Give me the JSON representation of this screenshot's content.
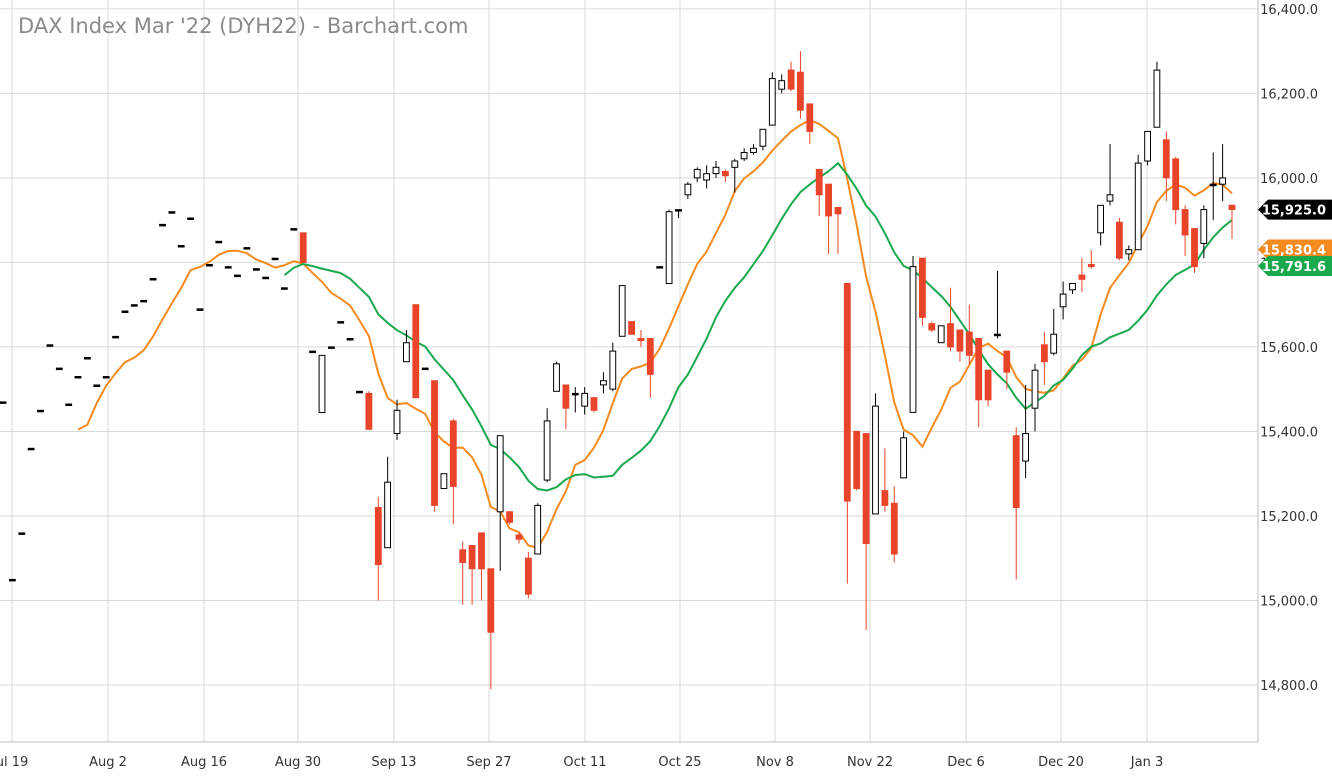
{
  "chart_data": {
    "type": "candlestick",
    "title": "DAX Index Mar '22 (DYH22) - Barchart.com",
    "ylim": [
      14700,
      16400
    ],
    "grid": true,
    "x_tick_labels": [
      "ul 19",
      "Aug 2",
      "Aug 16",
      "Aug 30",
      "Sep 13",
      "Sep 27",
      "Oct 11",
      "Oct 25",
      "Nov 8",
      "Nov 22",
      "Dec 6",
      "Dec 20",
      "Jan 3"
    ],
    "y_ticks": [
      14800,
      15000,
      15200,
      15400,
      15600,
      15800,
      16000,
      16200,
      16400
    ],
    "y_tick_labels": [
      "14,800.0",
      "15,000.0",
      "15,200.0",
      "15,400.0",
      "15,600.0",
      "15,800.0",
      "16,000.0",
      "16,200.0",
      "16,400.0"
    ],
    "last_price": {
      "label": "15,925.0",
      "value": 15925.0,
      "color": "#000000"
    },
    "moving_averages": [
      {
        "value_label": "15,830.4",
        "value": 15830.4,
        "color": "#f58a1f"
      },
      {
        "value_label": "15,791.6",
        "value": 15791.6,
        "color": "#1aa84d"
      }
    ],
    "candles": [
      {
        "date": "Jul 16",
        "o": 15470,
        "h": 15470,
        "l": 15470,
        "c": 15470
      },
      {
        "date": "Jul 19",
        "o": 15050,
        "h": 15050,
        "l": 15050,
        "c": 15050
      },
      {
        "date": "Jul 20",
        "o": 15160,
        "h": 15160,
        "l": 15160,
        "c": 15160
      },
      {
        "date": "Jul 21",
        "o": 15360,
        "h": 15360,
        "l": 15360,
        "c": 15360
      },
      {
        "date": "Jul 22",
        "o": 15450,
        "h": 15450,
        "l": 15450,
        "c": 15450
      },
      {
        "date": "Jul 23",
        "o": 15605,
        "h": 15605,
        "l": 15605,
        "c": 15605
      },
      {
        "date": "Jul 26",
        "o": 15550,
        "h": 15550,
        "l": 15550,
        "c": 15550
      },
      {
        "date": "Jul 27",
        "o": 15465,
        "h": 15465,
        "l": 15465,
        "c": 15465
      },
      {
        "date": "Jul 28",
        "o": 15530,
        "h": 15530,
        "l": 15530,
        "c": 15530
      },
      {
        "date": "Jul 29",
        "o": 15575,
        "h": 15575,
        "l": 15575,
        "c": 15575
      },
      {
        "date": "Jul 30",
        "o": 15510,
        "h": 15510,
        "l": 15510,
        "c": 15510
      },
      {
        "date": "Aug 2",
        "o": 15530,
        "h": 15530,
        "l": 15530,
        "c": 15530
      },
      {
        "date": "Aug 3",
        "o": 15625,
        "h": 15625,
        "l": 15625,
        "c": 15625
      },
      {
        "date": "Aug 4",
        "o": 15685,
        "h": 15685,
        "l": 15685,
        "c": 15685
      },
      {
        "date": "Aug 5",
        "o": 15700,
        "h": 15700,
        "l": 15700,
        "c": 15700
      },
      {
        "date": "Aug 6",
        "o": 15710,
        "h": 15710,
        "l": 15710,
        "c": 15710
      },
      {
        "date": "Aug 9",
        "o": 15762,
        "h": 15762,
        "l": 15762,
        "c": 15762
      },
      {
        "date": "Aug 10",
        "o": 15890,
        "h": 15890,
        "l": 15890,
        "c": 15890
      },
      {
        "date": "Aug 11",
        "o": 15920,
        "h": 15920,
        "l": 15920,
        "c": 15920
      },
      {
        "date": "Aug 12",
        "o": 15840,
        "h": 15840,
        "l": 15840,
        "c": 15840
      },
      {
        "date": "Aug 13",
        "o": 15905,
        "h": 15905,
        "l": 15905,
        "c": 15905
      },
      {
        "date": "Aug 16",
        "o": 15690,
        "h": 15690,
        "l": 15690,
        "c": 15690
      },
      {
        "date": "Aug 17",
        "o": 15795,
        "h": 15795,
        "l": 15795,
        "c": 15795
      },
      {
        "date": "Aug 18",
        "o": 15850,
        "h": 15850,
        "l": 15850,
        "c": 15850
      },
      {
        "date": "Aug 19",
        "o": 15790,
        "h": 15790,
        "l": 15790,
        "c": 15790
      },
      {
        "date": "Aug 20",
        "o": 15770,
        "h": 15770,
        "l": 15770,
        "c": 15770
      },
      {
        "date": "Aug 23",
        "o": 15835,
        "h": 15835,
        "l": 15835,
        "c": 15835
      },
      {
        "date": "Aug 24",
        "o": 15785,
        "h": 15785,
        "l": 15785,
        "c": 15785
      },
      {
        "date": "Aug 25",
        "o": 15765,
        "h": 15765,
        "l": 15765,
        "c": 15765
      },
      {
        "date": "Aug 26",
        "o": 15810,
        "h": 15810,
        "l": 15810,
        "c": 15810
      },
      {
        "date": "Aug 27",
        "o": 15740,
        "h": 15740,
        "l": 15740,
        "c": 15740
      },
      {
        "date": "Aug 30",
        "o": 15880,
        "h": 15880,
        "l": 15880,
        "c": 15880
      },
      {
        "date": "Aug 31",
        "o": 15870,
        "h": 15870,
        "l": 15800,
        "c": 15800
      },
      {
        "date": "Sep 1",
        "o": 15590,
        "h": 15590,
        "l": 15590,
        "c": 15590
      },
      {
        "date": "Sep 2",
        "o": 15445,
        "h": 15580,
        "l": 15445,
        "c": 15580
      },
      {
        "date": "Sep 3",
        "o": 15600,
        "h": 15600,
        "l": 15600,
        "c": 15600
      },
      {
        "date": "Sep 6",
        "o": 15660,
        "h": 15660,
        "l": 15660,
        "c": 15660
      },
      {
        "date": "Sep 7",
        "o": 15620,
        "h": 15620,
        "l": 15620,
        "c": 15620
      },
      {
        "date": "Sep 8",
        "o": 15495,
        "h": 15495,
        "l": 15495,
        "c": 15495
      },
      {
        "date": "Sep 9",
        "o": 15490,
        "h": 15495,
        "l": 15420,
        "c": 15405
      },
      {
        "date": "Sep 10",
        "o": 15220,
        "h": 15245,
        "l": 15000,
        "c": 15085
      },
      {
        "date": "Sep 13",
        "o": 15125,
        "h": 15340,
        "l": 15125,
        "c": 15280
      },
      {
        "date": "Sep 14",
        "o": 15395,
        "h": 15475,
        "l": 15380,
        "c": 15450
      },
      {
        "date": "Sep 15",
        "o": 15565,
        "h": 15640,
        "l": 15565,
        "c": 15610
      },
      {
        "date": "Sep 16",
        "o": 15700,
        "h": 15700,
        "l": 15480,
        "c": 15480
      },
      {
        "date": "Sep 17",
        "o": 15550,
        "h": 15550,
        "l": 15550,
        "c": 15550
      },
      {
        "date": "Sep 20",
        "o": 15520,
        "h": 15520,
        "l": 15210,
        "c": 15225
      },
      {
        "date": "Sep 21",
        "o": 15265,
        "h": 15300,
        "l": 15265,
        "c": 15300
      },
      {
        "date": "Sep 22",
        "o": 15425,
        "h": 15430,
        "l": 15180,
        "c": 15270
      },
      {
        "date": "Sep 23",
        "o": 15120,
        "h": 15140,
        "l": 14990,
        "c": 15090
      },
      {
        "date": "Sep 24",
        "o": 15130,
        "h": 15130,
        "l": 14990,
        "c": 15075
      },
      {
        "date": "Sep 27",
        "o": 15160,
        "h": 15160,
        "l": 15000,
        "c": 15075
      },
      {
        "date": "Sep 28",
        "o": 15075,
        "h": 15075,
        "l": 14790,
        "c": 14925
      },
      {
        "date": "Sep 29",
        "o": 15210,
        "h": 15390,
        "l": 15070,
        "c": 15390
      },
      {
        "date": "Sep 30",
        "o": 15210,
        "h": 15210,
        "l": 15180,
        "c": 15185
      },
      {
        "date": "Oct 1",
        "o": 15155,
        "h": 15160,
        "l": 15135,
        "c": 15145
      },
      {
        "date": "Oct 4",
        "o": 15100,
        "h": 15115,
        "l": 15005,
        "c": 15015
      },
      {
        "date": "Oct 5",
        "o": 15110,
        "h": 15230,
        "l": 15110,
        "c": 15225
      },
      {
        "date": "Oct 6",
        "o": 15285,
        "h": 15455,
        "l": 15280,
        "c": 15425
      },
      {
        "date": "Oct 7",
        "o": 15495,
        "h": 15565,
        "l": 15495,
        "c": 15560
      },
      {
        "date": "Oct 8",
        "o": 15510,
        "h": 15510,
        "l": 15405,
        "c": 15455
      },
      {
        "date": "Oct 11",
        "o": 15490,
        "h": 15505,
        "l": 15445,
        "c": 15490
      },
      {
        "date": "Oct 12",
        "o": 15460,
        "h": 15505,
        "l": 15440,
        "c": 15490
      },
      {
        "date": "Oct 13",
        "o": 15480,
        "h": 15480,
        "l": 15445,
        "c": 15450
      },
      {
        "date": "Oct 14",
        "o": 15510,
        "h": 15540,
        "l": 15490,
        "c": 15520
      },
      {
        "date": "Oct 15",
        "o": 15500,
        "h": 15610,
        "l": 15495,
        "c": 15590
      },
      {
        "date": "Oct 18",
        "o": 15625,
        "h": 15745,
        "l": 15625,
        "c": 15745
      },
      {
        "date": "Oct 19",
        "o": 15660,
        "h": 15660,
        "l": 15630,
        "c": 15630
      },
      {
        "date": "Oct 20",
        "o": 15620,
        "h": 15640,
        "l": 15600,
        "c": 15615
      },
      {
        "date": "Oct 21",
        "o": 15620,
        "h": 15620,
        "l": 15480,
        "c": 15535
      },
      {
        "date": "Oct 22",
        "o": 15790,
        "h": 15790,
        "l": 15790,
        "c": 15790
      },
      {
        "date": "Oct 25",
        "o": 15750,
        "h": 15925,
        "l": 15750,
        "c": 15920
      },
      {
        "date": "Oct 26",
        "o": 15925,
        "h": 15925,
        "l": 15905,
        "c": 15925
      },
      {
        "date": "Oct 27",
        "o": 15960,
        "h": 15990,
        "l": 15950,
        "c": 15985
      },
      {
        "date": "Oct 28",
        "o": 16000,
        "h": 16025,
        "l": 15990,
        "c": 16020
      },
      {
        "date": "Oct 29",
        "o": 15995,
        "h": 16030,
        "l": 15975,
        "c": 16010
      },
      {
        "date": "Nov 1",
        "o": 16010,
        "h": 16040,
        "l": 16000,
        "c": 16025
      },
      {
        "date": "Nov 2",
        "o": 16015,
        "h": 16020,
        "l": 15990,
        "c": 16005
      },
      {
        "date": "Nov 3",
        "o": 16025,
        "h": 16045,
        "l": 15965,
        "c": 16040
      },
      {
        "date": "Nov 4",
        "o": 16045,
        "h": 16070,
        "l": 16040,
        "c": 16060
      },
      {
        "date": "Nov 5",
        "o": 16060,
        "h": 16080,
        "l": 16055,
        "c": 16070
      },
      {
        "date": "Nov 8",
        "o": 16075,
        "h": 16110,
        "l": 16065,
        "c": 16115
      },
      {
        "date": "Nov 9",
        "o": 16125,
        "h": 16250,
        "l": 16125,
        "c": 16235
      },
      {
        "date": "Nov 10",
        "o": 16210,
        "h": 16245,
        "l": 16200,
        "c": 16230
      },
      {
        "date": "Nov 11",
        "o": 16255,
        "h": 16275,
        "l": 16205,
        "c": 16210
      },
      {
        "date": "Nov 12",
        "o": 16250,
        "h": 16300,
        "l": 16140,
        "c": 16160
      },
      {
        "date": "Nov 15",
        "o": 16175,
        "h": 16175,
        "l": 16080,
        "c": 16110
      },
      {
        "date": "Nov 16",
        "o": 16020,
        "h": 16020,
        "l": 15910,
        "c": 15960
      },
      {
        "date": "Nov 17",
        "o": 15985,
        "h": 15985,
        "l": 15820,
        "c": 15910
      },
      {
        "date": "Nov 18",
        "o": 15930,
        "h": 15930,
        "l": 15820,
        "c": 15915
      },
      {
        "date": "Nov 19",
        "o": 15750,
        "h": 15750,
        "l": 15040,
        "c": 15235
      },
      {
        "date": "Nov 22",
        "o": 15400,
        "h": 15400,
        "l": 15260,
        "c": 15265
      },
      {
        "date": "Nov 23",
        "o": 15395,
        "h": 15395,
        "l": 14930,
        "c": 15135
      },
      {
        "date": "Nov 24",
        "o": 15205,
        "h": 15490,
        "l": 15205,
        "c": 15460
      },
      {
        "date": "Nov 25",
        "o": 15260,
        "h": 15360,
        "l": 15210,
        "c": 15225
      },
      {
        "date": "Nov 26",
        "o": 15230,
        "h": 15270,
        "l": 15090,
        "c": 15110
      },
      {
        "date": "Dec 1",
        "o": 15290,
        "h": 15400,
        "l": 15290,
        "c": 15385
      },
      {
        "date": "Dec 2",
        "o": 15445,
        "h": 15815,
        "l": 15445,
        "c": 15790
      },
      {
        "date": "Dec 3",
        "o": 15810,
        "h": 15810,
        "l": 15650,
        "c": 15670
      },
      {
        "date": "Dec 6",
        "o": 15655,
        "h": 15660,
        "l": 15635,
        "c": 15640
      },
      {
        "date": "Dec 7",
        "o": 15610,
        "h": 15645,
        "l": 15610,
        "c": 15650
      },
      {
        "date": "Dec 8",
        "o": 15655,
        "h": 15740,
        "l": 15590,
        "c": 15600
      },
      {
        "date": "Dec 9",
        "o": 15640,
        "h": 15640,
        "l": 15565,
        "c": 15590
      },
      {
        "date": "Dec 10",
        "o": 15635,
        "h": 15700,
        "l": 15560,
        "c": 15580
      },
      {
        "date": "Dec 13",
        "o": 15620,
        "h": 15620,
        "l": 15410,
        "c": 15475
      },
      {
        "date": "Dec 14",
        "o": 15545,
        "h": 15545,
        "l": 15460,
        "c": 15475
      },
      {
        "date": "Dec 15",
        "o": 15630,
        "h": 15780,
        "l": 15620,
        "c": 15630
      },
      {
        "date": "Dec 16",
        "o": 15590,
        "h": 15590,
        "l": 15500,
        "c": 15540
      },
      {
        "date": "Dec 17",
        "o": 15390,
        "h": 15410,
        "l": 15050,
        "c": 15220
      },
      {
        "date": "Dec 20",
        "o": 15330,
        "h": 15510,
        "l": 15290,
        "c": 15395
      },
      {
        "date": "Dec 21",
        "o": 15455,
        "h": 15560,
        "l": 15400,
        "c": 15545
      },
      {
        "date": "Dec 22",
        "o": 15605,
        "h": 15635,
        "l": 15510,
        "c": 15565
      },
      {
        "date": "Dec 23",
        "o": 15585,
        "h": 15690,
        "l": 15580,
        "c": 15630
      },
      {
        "date": "Dec 27",
        "o": 15695,
        "h": 15755,
        "l": 15665,
        "c": 15725
      },
      {
        "date": "Dec 28",
        "o": 15735,
        "h": 15750,
        "l": 15725,
        "c": 15750
      },
      {
        "date": "Dec 29",
        "o": 15770,
        "h": 15810,
        "l": 15730,
        "c": 15760
      },
      {
        "date": "Dec 30",
        "o": 15795,
        "h": 15830,
        "l": 15785,
        "c": 15790
      },
      {
        "date": "Dec 31",
        "o": 15870,
        "h": 15935,
        "l": 15840,
        "c": 15935
      },
      {
        "date": "Jan 3",
        "o": 15945,
        "h": 16080,
        "l": 15935,
        "c": 15960
      },
      {
        "date": "Jan 4",
        "o": 15895,
        "h": 15905,
        "l": 15805,
        "c": 15810
      },
      {
        "date": "Jan 5",
        "o": 15820,
        "h": 15840,
        "l": 15805,
        "c": 15830
      },
      {
        "date": "Jan 6",
        "o": 15830,
        "h": 16055,
        "l": 15830,
        "c": 16035
      },
      {
        "date": "Jan 7",
        "o": 16040,
        "h": 16095,
        "l": 16030,
        "c": 16110
      },
      {
        "date": "Jan 10",
        "o": 16120,
        "h": 16275,
        "l": 16120,
        "c": 16255
      },
      {
        "date": "Jan 11",
        "o": 16090,
        "h": 16110,
        "l": 15945,
        "c": 16000
      },
      {
        "date": "Jan 12",
        "o": 16045,
        "h": 16050,
        "l": 15890,
        "c": 15925
      },
      {
        "date": "Jan 13",
        "o": 15925,
        "h": 15935,
        "l": 15815,
        "c": 15865
      },
      {
        "date": "Jan 14",
        "o": 15880,
        "h": 15880,
        "l": 15775,
        "c": 15790
      },
      {
        "date": "Jan 17",
        "o": 15845,
        "h": 15935,
        "l": 15810,
        "c": 15925
      },
      {
        "date": "Jan 18",
        "o": 15985,
        "h": 16060,
        "l": 15900,
        "c": 15985
      },
      {
        "date": "Jan 19",
        "o": 15985,
        "h": 16080,
        "l": 15945,
        "c": 16000
      },
      {
        "date": "Jan 20",
        "o": 15935,
        "h": 15935,
        "l": 15855,
        "c": 15925
      }
    ]
  }
}
